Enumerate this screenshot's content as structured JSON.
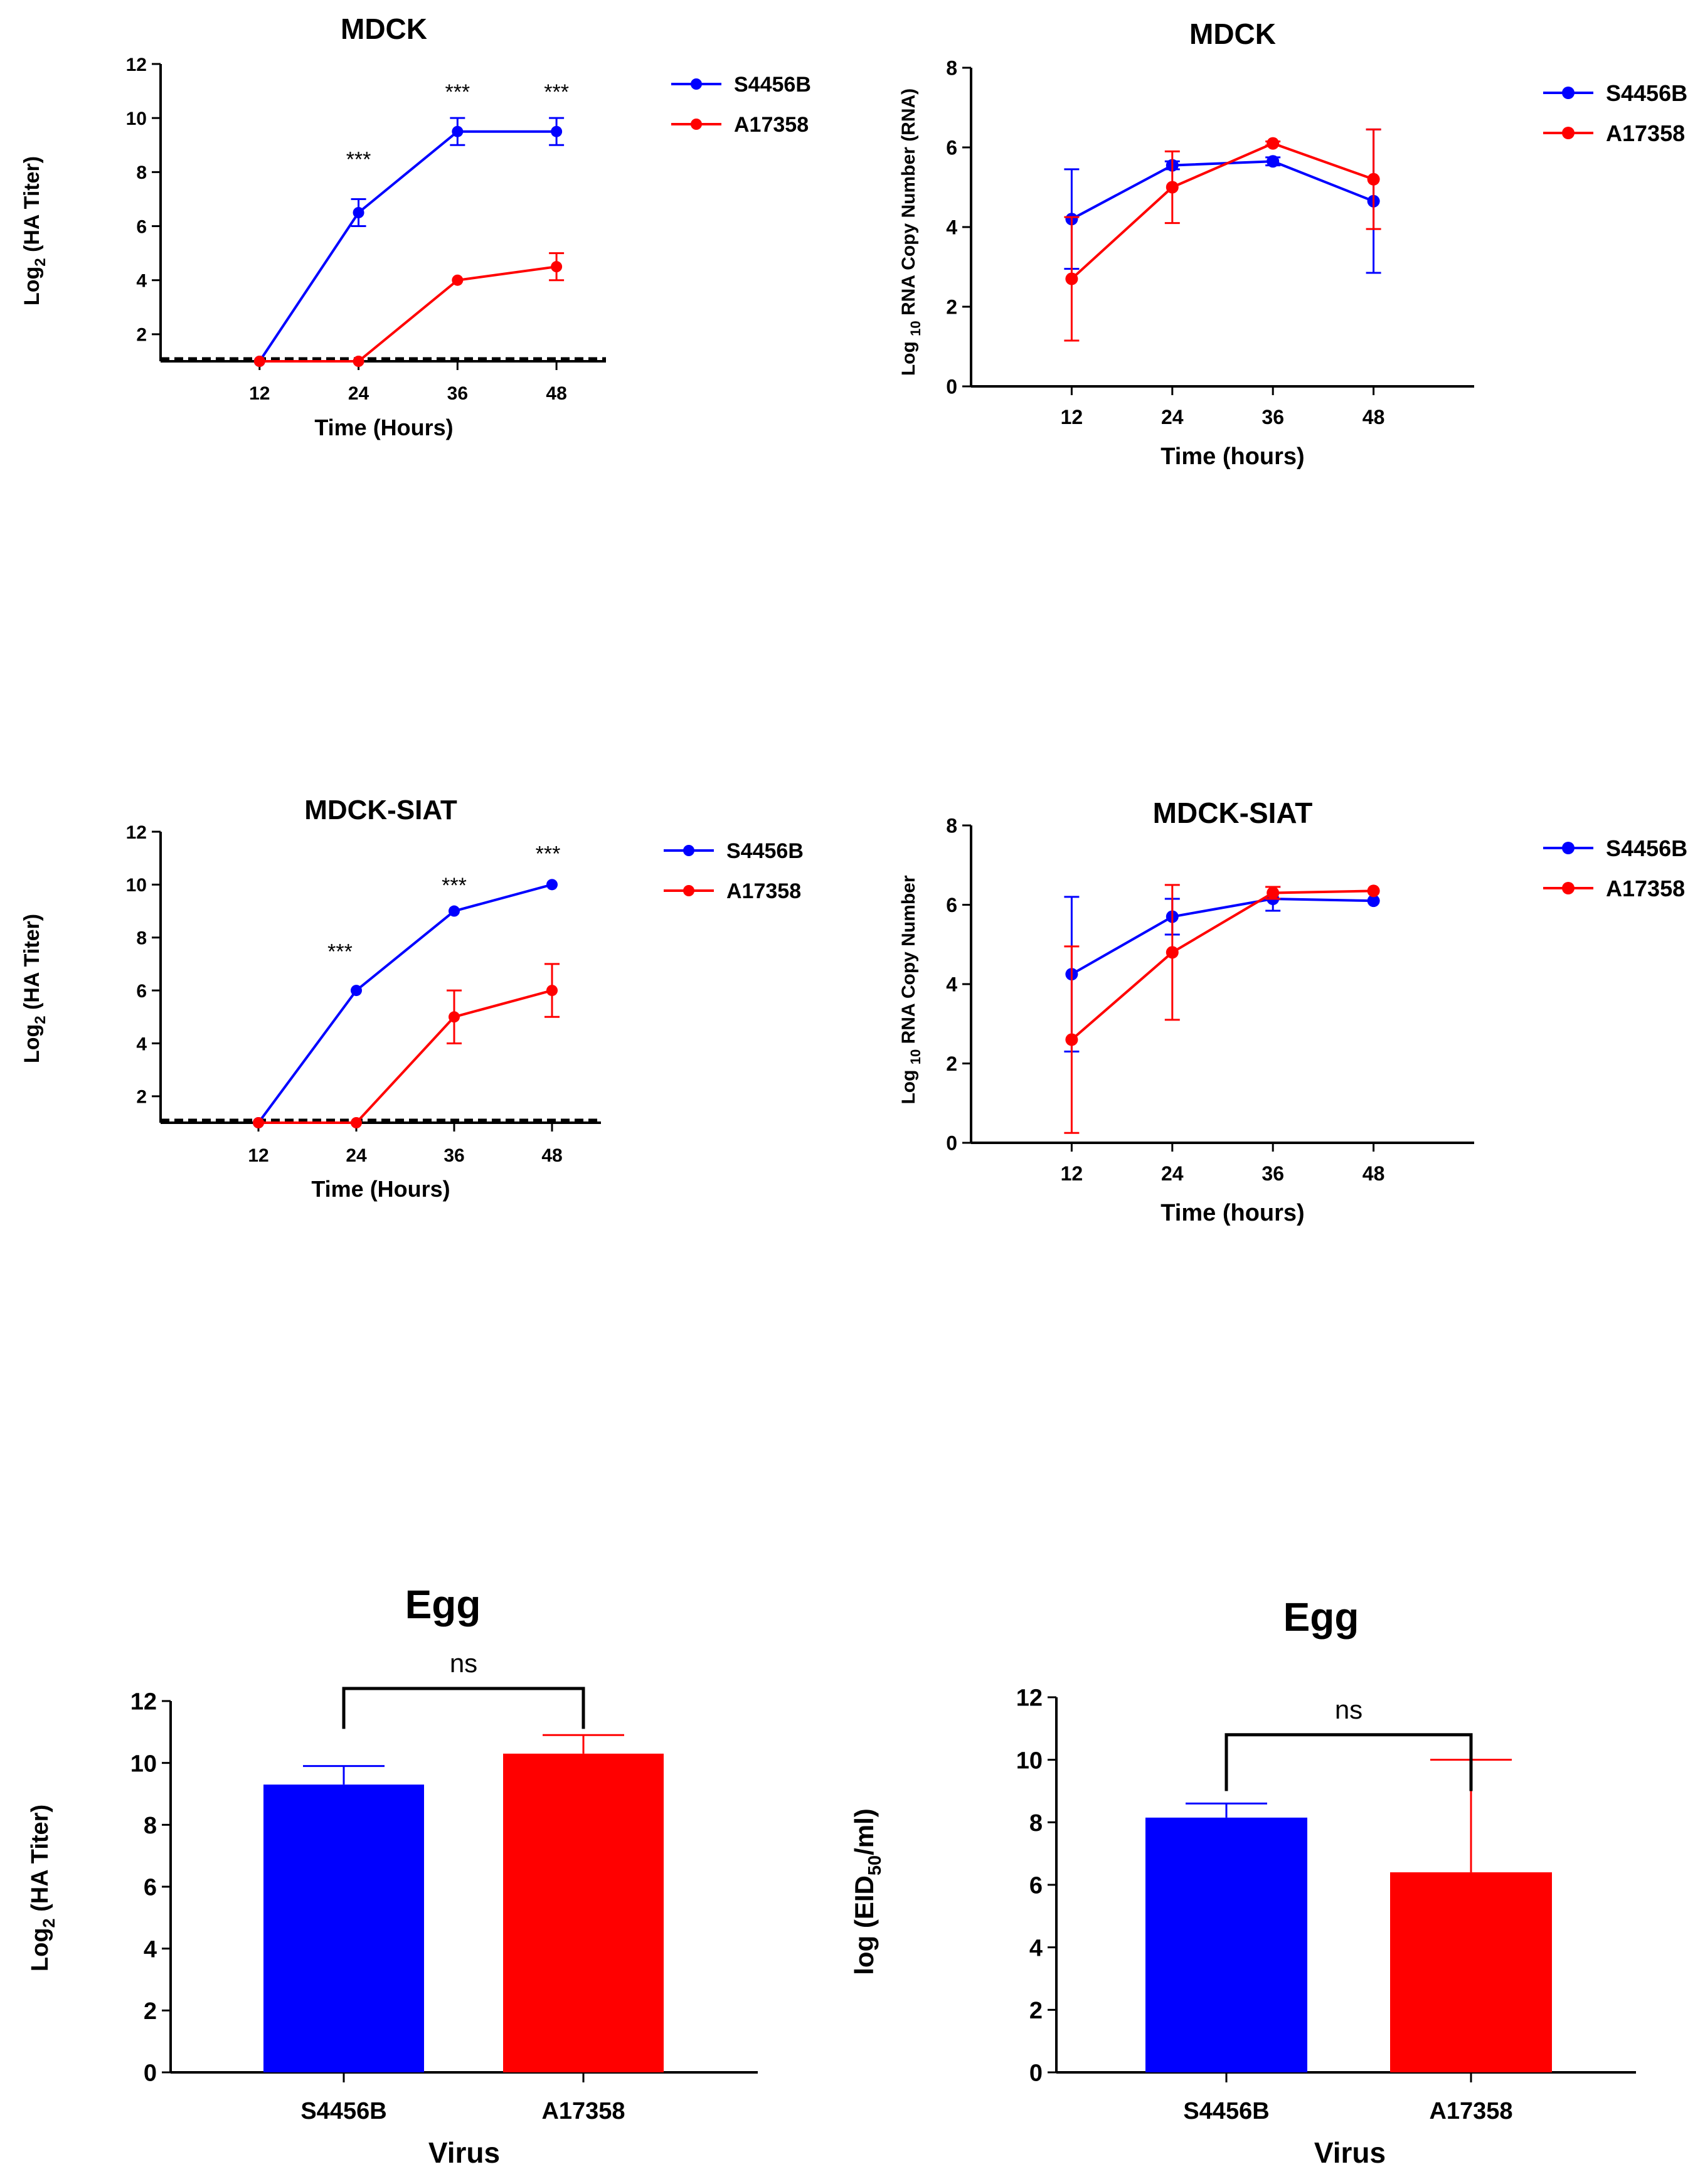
{
  "colors": {
    "S4456B": "#0000ff",
    "A17358": "#ff0000",
    "axis": "#000000"
  },
  "chart_data": [
    {
      "id": "p1",
      "type": "line",
      "title": "MDCK",
      "xlabel": "Time (Hours)",
      "ylabel_main": "Log",
      "ylabel_sub": "2",
      "ylabel_rest": " (HA Titer)",
      "x": [
        12,
        24,
        36,
        48
      ],
      "xlim": [
        0,
        54
      ],
      "ylim": [
        1,
        12
      ],
      "yticks": [
        "2",
        "4",
        "6",
        "8",
        "10",
        "12"
      ],
      "xticks": [
        "12",
        "24",
        "36",
        "48"
      ],
      "baseline": 1,
      "series": [
        {
          "name": "S4456B",
          "values": [
            1,
            6.5,
            9.5,
            9.5
          ],
          "err": [
            0,
            0.5,
            0.5,
            0.5
          ]
        },
        {
          "name": "A17358",
          "values": [
            1,
            1,
            4,
            4.5
          ],
          "err": [
            0,
            0,
            0,
            0.5
          ]
        }
      ],
      "annotations": [
        {
          "x": 24,
          "y": 8.2,
          "text": "***"
        },
        {
          "x": 36,
          "y": 10.7,
          "text": "***"
        },
        {
          "x": 48,
          "y": 10.7,
          "text": "***"
        }
      ],
      "legend": [
        "S4456B",
        "A17358"
      ]
    },
    {
      "id": "p2",
      "type": "line",
      "title": "MDCK",
      "xlabel": "Time (hours)",
      "ylabel_main": "Log ",
      "ylabel_sub": "10",
      "ylabel_rest": " RNA Copy Number (RNA)",
      "x": [
        12,
        24,
        36,
        48
      ],
      "xlim": [
        0,
        60
      ],
      "ylim": [
        0,
        8
      ],
      "yticks": [
        "0",
        "2",
        "4",
        "6",
        "8"
      ],
      "xticks": [
        "12",
        "24",
        "36",
        "48"
      ],
      "series": [
        {
          "name": "S4456B",
          "values": [
            4.2,
            5.55,
            5.65,
            4.65
          ],
          "err": [
            1.25,
            0.1,
            0.1,
            1.8
          ]
        },
        {
          "name": "A17358",
          "values": [
            2.7,
            5.0,
            6.1,
            5.2
          ],
          "err": [
            1.55,
            0.9,
            0.05,
            1.25
          ]
        }
      ],
      "legend": [
        "S4456B",
        "A17358"
      ]
    },
    {
      "id": "p3",
      "type": "line",
      "title": "MDCK-SIAT",
      "xlabel": "Time (Hours)",
      "ylabel_main": "Log",
      "ylabel_sub": "2",
      "ylabel_rest": " (HA Titer)",
      "x": [
        12,
        24,
        36,
        48
      ],
      "xlim": [
        0,
        54
      ],
      "ylim": [
        1,
        12
      ],
      "yticks": [
        "2",
        "4",
        "6",
        "8",
        "10",
        "12"
      ],
      "xticks": [
        "12",
        "24",
        "36",
        "48"
      ],
      "baseline": 1,
      "series": [
        {
          "name": "S4456B",
          "values": [
            1,
            6,
            9,
            10
          ],
          "err": [
            0,
            0,
            0,
            0
          ]
        },
        {
          "name": "A17358",
          "values": [
            1,
            1,
            5,
            6
          ],
          "err": [
            0,
            0,
            1,
            1
          ]
        }
      ],
      "annotations": [
        {
          "x": 22,
          "y": 7.2,
          "text": "***"
        },
        {
          "x": 36,
          "y": 9.7,
          "text": "***"
        },
        {
          "x": 47.5,
          "y": 10.9,
          "text": "***"
        }
      ],
      "legend": [
        "S4456B",
        "A17358"
      ]
    },
    {
      "id": "p4",
      "type": "line",
      "title": "MDCK-SIAT",
      "xlabel": "Time (hours)",
      "ylabel_main": "Log ",
      "ylabel_sub": "10",
      "ylabel_rest": " RNA Copy Number",
      "x": [
        12,
        24,
        36,
        48
      ],
      "xlim": [
        0,
        60
      ],
      "ylim": [
        0,
        8
      ],
      "yticks": [
        "0",
        "2",
        "4",
        "6",
        "8"
      ],
      "xticks": [
        "12",
        "24",
        "36",
        "48"
      ],
      "series": [
        {
          "name": "S4456B",
          "values": [
            4.25,
            5.7,
            6.15,
            6.1
          ],
          "err": [
            1.95,
            0.45,
            0.3,
            0
          ]
        },
        {
          "name": "A17358",
          "values": [
            2.6,
            4.8,
            6.3,
            6.35
          ],
          "err": [
            2.35,
            1.7,
            0.15,
            0
          ]
        }
      ],
      "legend": [
        "S4456B",
        "A17358"
      ]
    },
    {
      "id": "p5",
      "type": "bar",
      "title": "Egg",
      "xlabel": "Virus",
      "ylabel_main": "Log",
      "ylabel_sub": "2",
      "ylabel_rest": " (HA Titer)",
      "categories": [
        "S4456B",
        "A17358"
      ],
      "values": [
        9.3,
        10.3
      ],
      "err": [
        0.6,
        0.6
      ],
      "ylim": [
        0,
        12
      ],
      "yticks": [
        "0",
        "2",
        "4",
        "6",
        "8",
        "10",
        "12"
      ],
      "significance": "ns"
    },
    {
      "id": "p6",
      "type": "bar",
      "title": "Egg",
      "xlabel": "Virus",
      "ylabel_main": "log (EID",
      "ylabel_sub": "50",
      "ylabel_rest": "/ml)",
      "categories": [
        "S4456B",
        "A17358"
      ],
      "values": [
        8.15,
        6.4
      ],
      "err": [
        0.45,
        3.6
      ],
      "ylim": [
        0,
        12
      ],
      "yticks": [
        "0",
        "2",
        "4",
        "6",
        "8",
        "10",
        "12"
      ],
      "significance": "ns"
    }
  ]
}
